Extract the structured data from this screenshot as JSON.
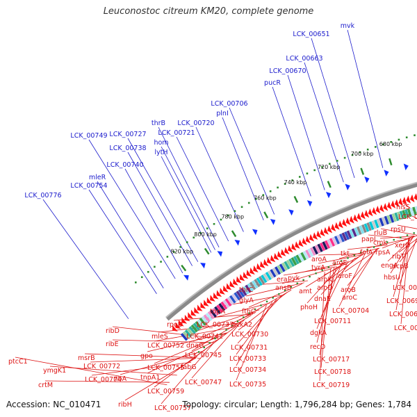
{
  "title": "Leuconostoc citreum KM20, complete genome",
  "footer": {
    "accession": "Accession: NC_010471",
    "summary": "Topology: circular; Length: 1,796,284 bp; Genes: 1,784"
  },
  "colors": {
    "plus_label": "#1a1acc",
    "minus_label": "#dd1111",
    "backbone": "#8a8a8a",
    "gene_arrow": "#ff1111",
    "tick": "#2e8b2e"
  },
  "ticks": [
    {
      "label": "680 kbp"
    },
    {
      "label": "700 kbp"
    },
    {
      "label": "720 kbp"
    },
    {
      "label": "740 kbp"
    },
    {
      "label": "760 kbp"
    },
    {
      "label": "780 kbp"
    },
    {
      "label": "800 kbp"
    },
    {
      "label": "820 kbp"
    }
  ],
  "plus_genes": [
    {
      "label": "mvk"
    },
    {
      "label": "LCK_00651"
    },
    {
      "label": "LCK_00663"
    },
    {
      "label": "LCK_00670"
    },
    {
      "label": "pucR"
    },
    {
      "label": "LCK_00706"
    },
    {
      "label": "plnI"
    },
    {
      "label": "LCK_00720"
    },
    {
      "label": "LCK_00721"
    },
    {
      "label": "thrB"
    },
    {
      "label": "LCK_00727"
    },
    {
      "label": "hom"
    },
    {
      "label": "LCK_00749"
    },
    {
      "label": "LCK_00738"
    },
    {
      "label": "lytH"
    },
    {
      "label": "LCK_00740"
    },
    {
      "label": "mleR"
    },
    {
      "label": "LCK_00754"
    },
    {
      "label": "LCK_00776"
    }
  ],
  "minus_genes": [
    {
      "label": "hisS"
    },
    {
      "label": "LCK_00672"
    },
    {
      "label": "rpsU"
    },
    {
      "label": "rluB"
    },
    {
      "label": "xerD"
    },
    {
      "label": "cmk"
    },
    {
      "label": "ribT"
    },
    {
      "label": "papL"
    },
    {
      "label": "rpsA"
    },
    {
      "label": "scpB"
    },
    {
      "label": "engA"
    },
    {
      "label": "folA"
    },
    {
      "label": "hbsU"
    },
    {
      "label": "tkt"
    },
    {
      "label": "LCK_00689"
    },
    {
      "label": "aroA"
    },
    {
      "label": "aroE"
    },
    {
      "label": "tyrA"
    },
    {
      "label": "aroF"
    },
    {
      "label": "pyk"
    },
    {
      "label": "aroK"
    },
    {
      "label": "LCK_00693"
    },
    {
      "label": "aroB"
    },
    {
      "label": "era"
    },
    {
      "label": "aroD"
    },
    {
      "label": "ansB"
    },
    {
      "label": "amt"
    },
    {
      "label": "aroC"
    },
    {
      "label": "dnaE"
    },
    {
      "label": "LCK_00704"
    },
    {
      "label": "LCK_00694"
    },
    {
      "label": "phoH"
    },
    {
      "label": "LCK_00695"
    },
    {
      "label": "LCK_00711"
    },
    {
      "label": "thrC"
    },
    {
      "label": "dgkA"
    },
    {
      "label": "glyA"
    },
    {
      "label": "fthC"
    },
    {
      "label": "recO"
    },
    {
      "label": "topA"
    },
    {
      "label": "LCK_00737"
    },
    {
      "label": "ackA2"
    },
    {
      "label": "LCK_00730"
    },
    {
      "label": "LCK_00717"
    },
    {
      "label": "rpoD"
    },
    {
      "label": "LCK_00742"
    },
    {
      "label": "LCK_00731"
    },
    {
      "label": "mleS"
    },
    {
      "label": "dnaG"
    },
    {
      "label": "LCK_00752"
    },
    {
      "label": "LCK_00745"
    },
    {
      "label": "LCK_00733"
    },
    {
      "label": "LCK_00718"
    },
    {
      "label": "gpo"
    },
    {
      "label": "fabG"
    },
    {
      "label": "LCK_00734"
    },
    {
      "label": "msrB"
    },
    {
      "label": "ribD"
    },
    {
      "label": "LCK_00755"
    },
    {
      "label": "ribE"
    },
    {
      "label": "LCK_00719"
    },
    {
      "label": "LCK_00747"
    },
    {
      "label": "LCK_00735"
    },
    {
      "label": "LCK_00772"
    },
    {
      "label": "ptcC1"
    },
    {
      "label": "ymgK1"
    },
    {
      "label": "tnpA1"
    },
    {
      "label": "LCK_00774"
    },
    {
      "label": "ribA"
    },
    {
      "label": "crtM"
    },
    {
      "label": "LCK_00759"
    },
    {
      "label": "ribH"
    },
    {
      "label": "LCK_00757"
    }
  ]
}
